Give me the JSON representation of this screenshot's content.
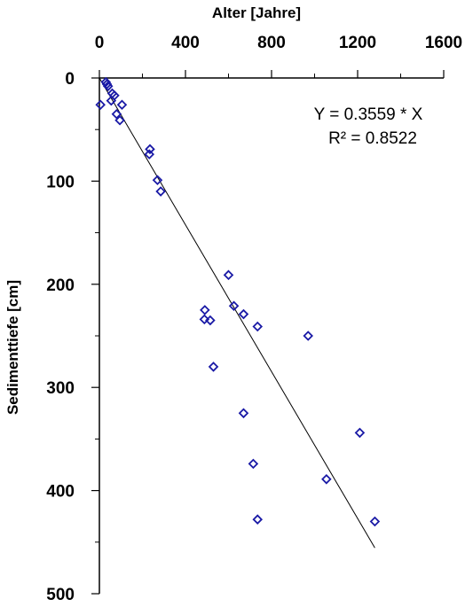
{
  "chart_data": {
    "type": "scatter",
    "title": "",
    "xlabel": "Alter [Jahre]",
    "ylabel": "Sedimenttiefe [cm]",
    "x_axis_position": "top",
    "y_axis_inverted": true,
    "xlim": [
      0,
      1600
    ],
    "ylim": [
      0,
      500
    ],
    "x_ticks": [
      0,
      400,
      800,
      1200,
      1600
    ],
    "x_tick_labels": [
      "0",
      "400",
      "800",
      "1200",
      "1600"
    ],
    "y_ticks": [
      0,
      100,
      200,
      300,
      400,
      500
    ],
    "y_tick_labels": [
      "0",
      "100",
      "200",
      "300",
      "400",
      "500"
    ],
    "grid": false,
    "marker": "diamond",
    "marker_color": "#1a1aa6",
    "line_color": "#000000",
    "annotations": [
      "Y = 0.3559 * X",
      "R² = 0.8522"
    ],
    "points": [
      {
        "x": 30,
        "y": 4
      },
      {
        "x": 35,
        "y": 6
      },
      {
        "x": 40,
        "y": 8
      },
      {
        "x": 60,
        "y": 15
      },
      {
        "x": 70,
        "y": 17
      },
      {
        "x": 55,
        "y": 22
      },
      {
        "x": 5,
        "y": 26
      },
      {
        "x": 105,
        "y": 26
      },
      {
        "x": 80,
        "y": 35
      },
      {
        "x": 95,
        "y": 41
      },
      {
        "x": 235,
        "y": 69
      },
      {
        "x": 232,
        "y": 74
      },
      {
        "x": 270,
        "y": 99
      },
      {
        "x": 285,
        "y": 110
      },
      {
        "x": 600,
        "y": 191
      },
      {
        "x": 625,
        "y": 221
      },
      {
        "x": 670,
        "y": 229
      },
      {
        "x": 490,
        "y": 225
      },
      {
        "x": 515,
        "y": 235
      },
      {
        "x": 488,
        "y": 234
      },
      {
        "x": 735,
        "y": 241
      },
      {
        "x": 970,
        "y": 250
      },
      {
        "x": 530,
        "y": 280
      },
      {
        "x": 670,
        "y": 325
      },
      {
        "x": 1210,
        "y": 344
      },
      {
        "x": 715,
        "y": 374
      },
      {
        "x": 1055,
        "y": 389
      },
      {
        "x": 735,
        "y": 428
      },
      {
        "x": 1280,
        "y": 430
      }
    ],
    "regression": {
      "slope": 0.3559,
      "intercept": 0,
      "x_start": 0,
      "x_end": 1280
    }
  }
}
